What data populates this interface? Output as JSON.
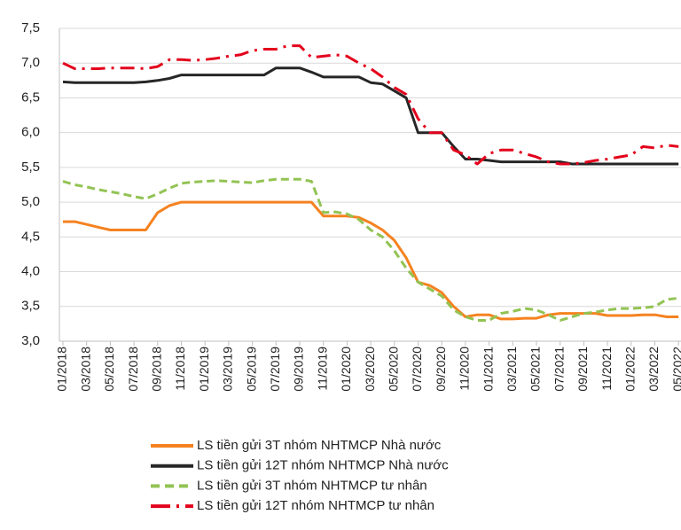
{
  "chart_data": {
    "type": "line",
    "categories": [
      "01/2018",
      null,
      "03/2018",
      null,
      "05/2018",
      null,
      "07/2018",
      null,
      "09/2018",
      null,
      "11/2018",
      null,
      "01/2019",
      null,
      "03/2019",
      null,
      "05/2019",
      null,
      "07/2019",
      null,
      "09/2019",
      null,
      "11/2019",
      null,
      "01/2020",
      null,
      "03/2020",
      null,
      "05/2020",
      null,
      "07/2020",
      null,
      "09/2020",
      null,
      "11/2020",
      null,
      "01/2021",
      null,
      "03/2021",
      null,
      "05/2021",
      null,
      "07/2021",
      null,
      "09/2021",
      null,
      "11/2021",
      null,
      "01/2022",
      null,
      "03/2022",
      null,
      "05/2022"
    ],
    "series": [
      {
        "name": "LS tiền gửi 3T nhóm NHTMCP Nhà nước",
        "color": "#f58220",
        "style": "solid",
        "values": [
          4.72,
          4.72,
          4.68,
          4.64,
          4.6,
          4.6,
          4.6,
          4.6,
          4.85,
          4.95,
          5.0,
          5.0,
          5.0,
          5.0,
          5.0,
          5.0,
          5.0,
          5.0,
          5.0,
          5.0,
          5.0,
          5.0,
          4.8,
          4.8,
          4.8,
          4.78,
          4.7,
          4.6,
          4.45,
          4.2,
          3.85,
          3.8,
          3.7,
          3.5,
          3.35,
          3.38,
          3.38,
          3.32,
          3.32,
          3.33,
          3.33,
          3.38,
          3.4,
          3.4,
          3.4,
          3.4,
          3.37,
          3.37,
          3.37,
          3.38,
          3.38,
          3.35,
          3.35
        ]
      },
      {
        "name": "LS tiền gửi 12T nhóm NHTMCP Nhà nước",
        "color": "#262626",
        "style": "solid",
        "values": [
          6.73,
          6.72,
          6.72,
          6.72,
          6.72,
          6.72,
          6.72,
          6.73,
          6.75,
          6.78,
          6.83,
          6.83,
          6.83,
          6.83,
          6.83,
          6.83,
          6.83,
          6.83,
          6.93,
          6.93,
          6.93,
          6.87,
          6.8,
          6.8,
          6.8,
          6.8,
          6.72,
          6.7,
          6.6,
          6.5,
          6.0,
          6.0,
          6.0,
          5.8,
          5.62,
          5.62,
          5.6,
          5.58,
          5.58,
          5.58,
          5.58,
          5.58,
          5.58,
          5.55,
          5.55,
          5.55,
          5.55,
          5.55,
          5.55,
          5.55,
          5.55,
          5.55,
          5.55
        ]
      },
      {
        "name": "LS tiền gửi 3T nhóm NHTMCP tư nhân",
        "color": "#92c353",
        "style": "dash",
        "values": [
          5.3,
          5.25,
          5.22,
          5.18,
          5.15,
          5.12,
          5.08,
          5.05,
          5.12,
          5.2,
          5.27,
          5.29,
          5.3,
          5.31,
          5.3,
          5.29,
          5.28,
          5.31,
          5.33,
          5.33,
          5.33,
          5.3,
          4.85,
          4.86,
          4.83,
          4.75,
          4.6,
          4.5,
          4.3,
          4.05,
          3.85,
          3.75,
          3.65,
          3.45,
          3.35,
          3.3,
          3.3,
          3.4,
          3.43,
          3.47,
          3.45,
          3.38,
          3.3,
          3.35,
          3.4,
          3.42,
          3.45,
          3.47,
          3.47,
          3.48,
          3.5,
          3.6,
          3.62
        ]
      },
      {
        "name": "LS tiền gửi 12T nhóm NHTMCP tư nhân",
        "color": "#e3001b",
        "style": "dashdot",
        "values": [
          7.0,
          6.92,
          6.92,
          6.92,
          6.93,
          6.93,
          6.93,
          6.92,
          6.95,
          7.05,
          7.05,
          7.04,
          7.05,
          7.07,
          7.1,
          7.12,
          7.18,
          7.2,
          7.2,
          7.25,
          7.25,
          7.08,
          7.1,
          7.12,
          7.1,
          7.0,
          6.92,
          6.8,
          6.65,
          6.55,
          6.2,
          6.0,
          6.0,
          5.75,
          5.68,
          5.55,
          5.7,
          5.75,
          5.75,
          5.7,
          5.65,
          5.58,
          5.55,
          5.55,
          5.57,
          5.6,
          5.62,
          5.65,
          5.68,
          5.8,
          5.78,
          5.82,
          5.8
        ]
      }
    ],
    "ylim": [
      3.0,
      7.5
    ],
    "yticks": [
      {
        "value": 3.0,
        "label": "3,0"
      },
      {
        "value": 3.5,
        "label": "3,5"
      },
      {
        "value": 4.0,
        "label": "4,0"
      },
      {
        "value": 4.5,
        "label": "4,5"
      },
      {
        "value": 5.0,
        "label": "5,0"
      },
      {
        "value": 5.5,
        "label": "5,5"
      },
      {
        "value": 6.0,
        "label": "6,0"
      },
      {
        "value": 6.5,
        "label": "6,5"
      },
      {
        "value": 7.0,
        "label": "7,0"
      },
      {
        "value": 7.5,
        "label": "7,5"
      }
    ],
    "grid": true,
    "legend": "bottom"
  }
}
